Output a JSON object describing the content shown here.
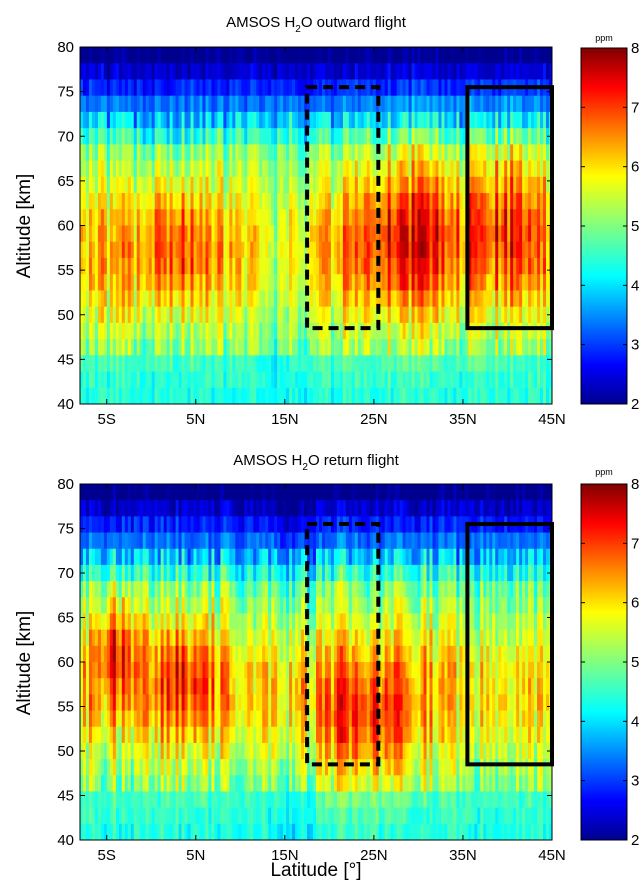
{
  "figure": {
    "xlabel": "Latitude [°]",
    "ylabel": "Altitude [km]",
    "colorbar_unit": "ppm"
  },
  "chart_data": [
    {
      "type": "heatmap",
      "id": "outward",
      "title_parts": {
        "pre": "AMSOS H",
        "sub": "2",
        "post": "O outward flight"
      },
      "x_ticks": [
        "5S",
        "5N",
        "15N",
        "25N",
        "35N",
        "45N"
      ],
      "x_tick_values": [
        -5,
        5,
        15,
        25,
        35,
        45
      ],
      "xlim": [
        -8,
        45
      ],
      "ylim": [
        40,
        80
      ],
      "y_ticks": [
        40,
        45,
        50,
        55,
        60,
        65,
        70,
        75,
        80
      ],
      "colorbar": {
        "range": [
          2,
          8
        ],
        "ticks": [
          2,
          3,
          4,
          5,
          6,
          7,
          8
        ],
        "unit": "ppm"
      },
      "boxes": [
        {
          "style": "dashed",
          "lat": [
            17.5,
            25.5
          ],
          "alt": [
            48.5,
            75.5
          ]
        },
        {
          "style": "solid",
          "lat": [
            35.5,
            45.0
          ],
          "alt": [
            48.5,
            75.5
          ]
        }
      ]
    },
    {
      "type": "heatmap",
      "id": "return",
      "title_parts": {
        "pre": "AMSOS H",
        "sub": "2",
        "post": "O return flight"
      },
      "x_ticks": [
        "5S",
        "5N",
        "15N",
        "25N",
        "35N",
        "45N"
      ],
      "x_tick_values": [
        -5,
        5,
        15,
        25,
        35,
        45
      ],
      "xlim": [
        -8,
        45
      ],
      "ylim": [
        40,
        80
      ],
      "y_ticks": [
        40,
        45,
        50,
        55,
        60,
        65,
        70,
        75,
        80
      ],
      "colorbar": {
        "range": [
          2,
          8
        ],
        "ticks": [
          2,
          3,
          4,
          5,
          6,
          7,
          8
        ],
        "unit": "ppm"
      },
      "boxes": [
        {
          "style": "dashed",
          "lat": [
            17.5,
            25.5
          ],
          "alt": [
            48.5,
            75.5
          ]
        },
        {
          "style": "solid",
          "lat": [
            35.5,
            45.0
          ],
          "alt": [
            48.5,
            75.5
          ]
        }
      ]
    }
  ]
}
